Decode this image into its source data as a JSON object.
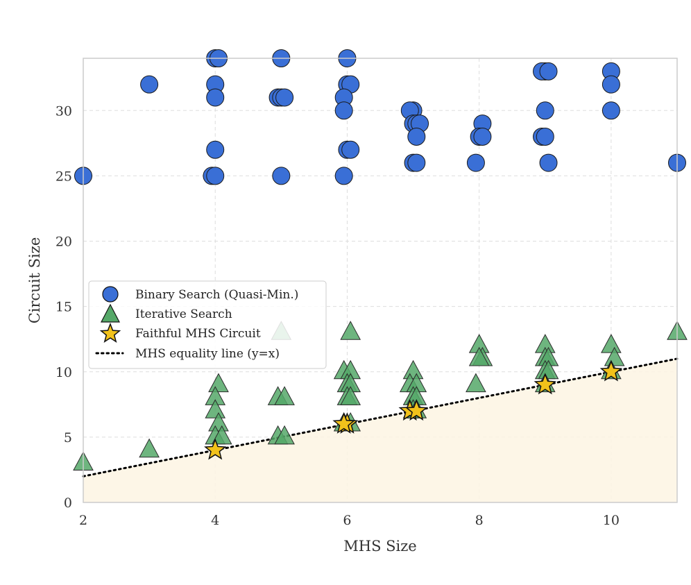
{
  "chart_data": {
    "type": "scatter",
    "title": "",
    "xlabel": "MHS Size",
    "ylabel": "Circuit Size",
    "xlim": [
      2,
      11
    ],
    "ylim": [
      0,
      34
    ],
    "xticks": [
      2,
      4,
      6,
      8,
      10
    ],
    "yticks": [
      0,
      5,
      10,
      15,
      20,
      25,
      30
    ],
    "grid": true,
    "legend_position": "center-left",
    "shaded_region": "below y=x",
    "series": [
      {
        "name": "Binary Search (Quasi-Min.)",
        "marker": "circle",
        "color": "#3a6fd6",
        "points": [
          [
            2,
            25
          ],
          [
            3,
            32
          ],
          [
            4,
            34
          ],
          [
            4.05,
            34
          ],
          [
            4,
            32
          ],
          [
            4,
            31
          ],
          [
            4,
            27
          ],
          [
            3.95,
            25
          ],
          [
            4,
            25
          ],
          [
            5,
            34
          ],
          [
            4.95,
            31
          ],
          [
            5,
            31
          ],
          [
            5.05,
            31
          ],
          [
            5,
            25
          ],
          [
            6,
            34
          ],
          [
            6,
            32
          ],
          [
            6.05,
            32
          ],
          [
            5.95,
            31
          ],
          [
            5.95,
            30
          ],
          [
            6,
            27
          ],
          [
            6.05,
            27
          ],
          [
            5.95,
            25
          ],
          [
            7,
            30
          ],
          [
            6.95,
            30
          ],
          [
            7,
            29
          ],
          [
            7.05,
            29
          ],
          [
            7.1,
            29
          ],
          [
            7.05,
            28
          ],
          [
            7,
            26
          ],
          [
            7.05,
            26
          ],
          [
            8.05,
            29
          ],
          [
            8,
            28
          ],
          [
            8.05,
            28
          ],
          [
            7.95,
            26
          ],
          [
            9,
            33
          ],
          [
            8.95,
            33
          ],
          [
            9.05,
            33
          ],
          [
            9,
            30
          ],
          [
            8.95,
            28
          ],
          [
            9,
            28
          ],
          [
            9.05,
            26
          ],
          [
            10,
            33
          ],
          [
            10,
            32
          ],
          [
            10,
            30
          ],
          [
            11,
            26
          ]
        ]
      },
      {
        "name": "Iterative Search",
        "marker": "triangle",
        "color": "#55a868",
        "points": [
          [
            2,
            3
          ],
          [
            3,
            4
          ],
          [
            4.05,
            9
          ],
          [
            4,
            8
          ],
          [
            4,
            7
          ],
          [
            4.05,
            6
          ],
          [
            4,
            5
          ],
          [
            4.1,
            5
          ],
          [
            5,
            13
          ],
          [
            4.95,
            8
          ],
          [
            5.05,
            8
          ],
          [
            4.95,
            5
          ],
          [
            5.05,
            5
          ],
          [
            6.05,
            13
          ],
          [
            5.95,
            10
          ],
          [
            6.05,
            10
          ],
          [
            6,
            9
          ],
          [
            6.05,
            9
          ],
          [
            6,
            8
          ],
          [
            6.05,
            8
          ],
          [
            5.95,
            6
          ],
          [
            6.05,
            6
          ],
          [
            7,
            10
          ],
          [
            6.95,
            9
          ],
          [
            7.05,
            9
          ],
          [
            7,
            8
          ],
          [
            7.05,
            8
          ],
          [
            7,
            7
          ],
          [
            7.05,
            7
          ],
          [
            8,
            12
          ],
          [
            8.05,
            11
          ],
          [
            8,
            11
          ],
          [
            7.95,
            9
          ],
          [
            9,
            12
          ],
          [
            9,
            11
          ],
          [
            9.05,
            11
          ],
          [
            9,
            10
          ],
          [
            9.05,
            10
          ],
          [
            9,
            9
          ],
          [
            10,
            12
          ],
          [
            10.05,
            11
          ],
          [
            10,
            10
          ],
          [
            11,
            13
          ]
        ]
      },
      {
        "name": "Faithful MHS Circuit",
        "marker": "star",
        "color": "#f2c21b",
        "points": [
          [
            4,
            4
          ],
          [
            6,
            6
          ],
          [
            5.95,
            6
          ],
          [
            6.95,
            7
          ],
          [
            7.05,
            7
          ],
          [
            9,
            9
          ],
          [
            10,
            10
          ]
        ]
      },
      {
        "name": "MHS equality line (y=x)",
        "marker": "dotted-line",
        "color": "#000000",
        "points": [
          [
            2,
            2
          ],
          [
            11,
            11
          ]
        ]
      }
    ]
  }
}
